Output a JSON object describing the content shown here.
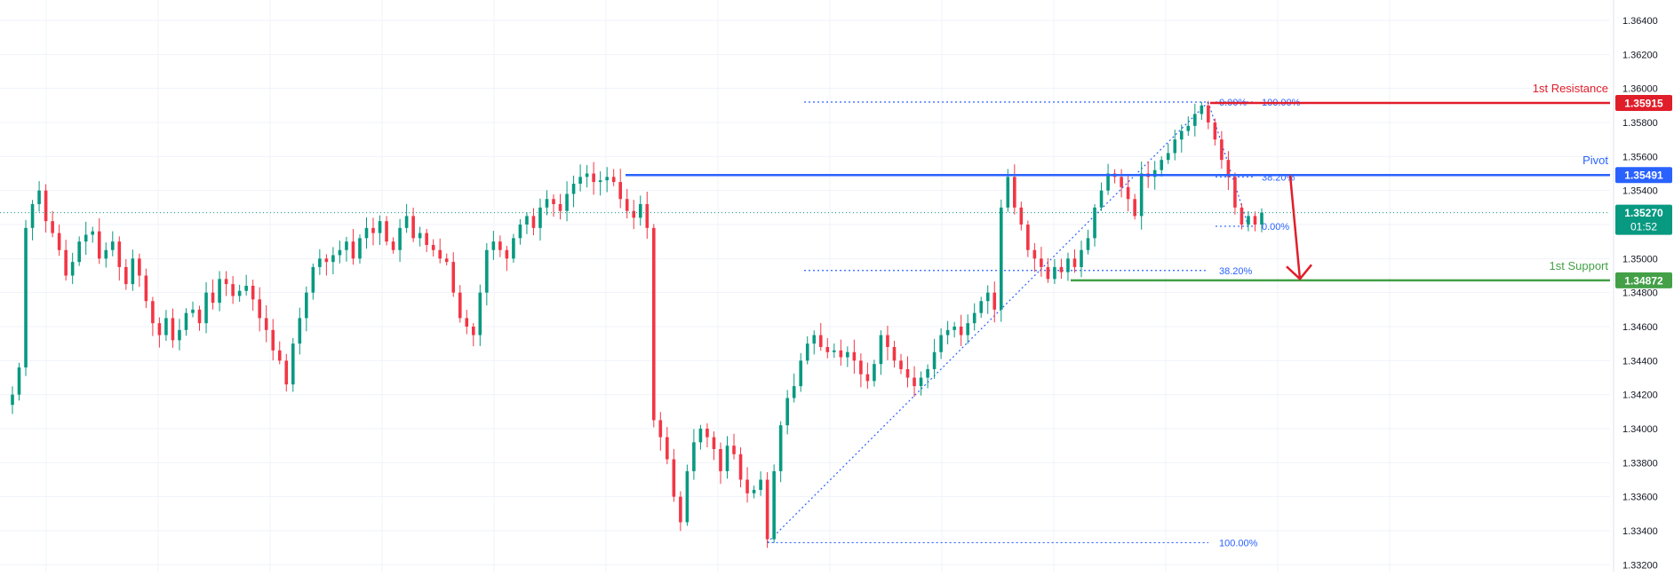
{
  "chart_data": {
    "type": "candlestick",
    "y_axis": {
      "position": "right",
      "ylim": [
        1.3316,
        1.3652
      ],
      "ticks": [
        "1.36400",
        "1.36200",
        "1.36000",
        "1.35800",
        "1.35600",
        "1.35400",
        "1.35200",
        "1.35000",
        "1.34800",
        "1.34600",
        "1.34400",
        "1.34200",
        "1.34000",
        "1.33800",
        "1.33600",
        "1.33400",
        "1.33200"
      ],
      "grid": true
    },
    "levels": [
      {
        "name": "1st Resistance",
        "value": 1.35915,
        "label": "1.35915",
        "color": "#e01e2a"
      },
      {
        "name": "Pivot",
        "value": 1.35491,
        "label": "1.35491",
        "color": "#2962ff"
      },
      {
        "name": "1st Support",
        "value": 1.34872,
        "label": "1.34872",
        "color": "#43a047"
      }
    ],
    "current_price": {
      "value": 1.3527,
      "label": "1.35270",
      "countdown": "01:52",
      "color": "#089981"
    },
    "fibonacci": [
      {
        "labels": [
          "0.00%",
          "38.20%",
          "100.00%"
        ],
        "prices": [
          1.3592,
          1.3493,
          1.3333
        ]
      },
      {
        "labels": [
          "100.00%",
          "38.20%",
          "0.00%"
        ],
        "prices": [
          1.3592,
          1.3548,
          1.3519
        ]
      }
    ],
    "projection": {
      "from": 1.3549,
      "to": 1.3488,
      "direction": "down",
      "color": "#e01e2a"
    },
    "colors": {
      "up": "#089981",
      "down": "#f23645",
      "grid": "#f0f3fa",
      "fib": "#2962ff"
    },
    "closes": [
      1.342,
      1.3436,
      1.3518,
      1.3532,
      1.354,
      1.3522,
      1.3515,
      1.3505,
      1.349,
      1.3498,
      1.351,
      1.3514,
      1.3516,
      1.35,
      1.3505,
      1.351,
      1.3495,
      1.3485,
      1.35,
      1.349,
      1.3475,
      1.3462,
      1.3455,
      1.3465,
      1.3452,
      1.3458,
      1.3468,
      1.347,
      1.3462,
      1.348,
      1.3474,
      1.3488,
      1.3485,
      1.3478,
      1.3481,
      1.3484,
      1.3476,
      1.3465,
      1.3458,
      1.3446,
      1.344,
      1.3426,
      1.345,
      1.3465,
      1.348,
      1.3495,
      1.35,
      1.3498,
      1.3502,
      1.3505,
      1.351,
      1.35,
      1.3512,
      1.3518,
      1.3515,
      1.3522,
      1.351,
      1.3505,
      1.3518,
      1.3525,
      1.3512,
      1.3515,
      1.3508,
      1.3505,
      1.35,
      1.3498,
      1.348,
      1.3465,
      1.346,
      1.3455,
      1.348,
      1.3505,
      1.351,
      1.3505,
      1.35,
      1.3512,
      1.352,
      1.3525,
      1.3518,
      1.353,
      1.3535,
      1.3532,
      1.3528,
      1.3538,
      1.3544,
      1.3548,
      1.355,
      1.3545,
      1.3546,
      1.3548,
      1.3545,
      1.3535,
      1.3528,
      1.3524,
      1.3532,
      1.3518,
      1.3405,
      1.3395,
      1.3382,
      1.336,
      1.3345,
      1.3375,
      1.3392,
      1.34,
      1.3395,
      1.3388,
      1.3375,
      1.339,
      1.3385,
      1.337,
      1.3362,
      1.3364,
      1.337,
      1.3335,
      1.3375,
      1.3402,
      1.3418,
      1.3425,
      1.344,
      1.345,
      1.3455,
      1.3448,
      1.3445,
      1.3446,
      1.3442,
      1.3445,
      1.344,
      1.3432,
      1.3428,
      1.3438,
      1.3455,
      1.3448,
      1.344,
      1.3435,
      1.343,
      1.3425,
      1.343,
      1.3435,
      1.3445,
      1.3455,
      1.3458,
      1.346,
      1.3455,
      1.3462,
      1.3468,
      1.3475,
      1.348,
      1.347,
      1.353,
      1.3548,
      1.353,
      1.352,
      1.3505,
      1.35,
      1.3495,
      1.3488,
      1.3495,
      1.3492,
      1.35,
      1.3495,
      1.3505,
      1.3512,
      1.353,
      1.354,
      1.355,
      1.3548,
      1.3542,
      1.3535,
      1.3525,
      1.355,
      1.3548,
      1.3552,
      1.3558,
      1.3562,
      1.357,
      1.3575,
      1.3578,
      1.3585,
      1.359,
      1.358,
      1.357,
      1.3558,
      1.3548,
      1.353,
      1.352,
      1.3525,
      1.352,
      1.3527
    ]
  }
}
